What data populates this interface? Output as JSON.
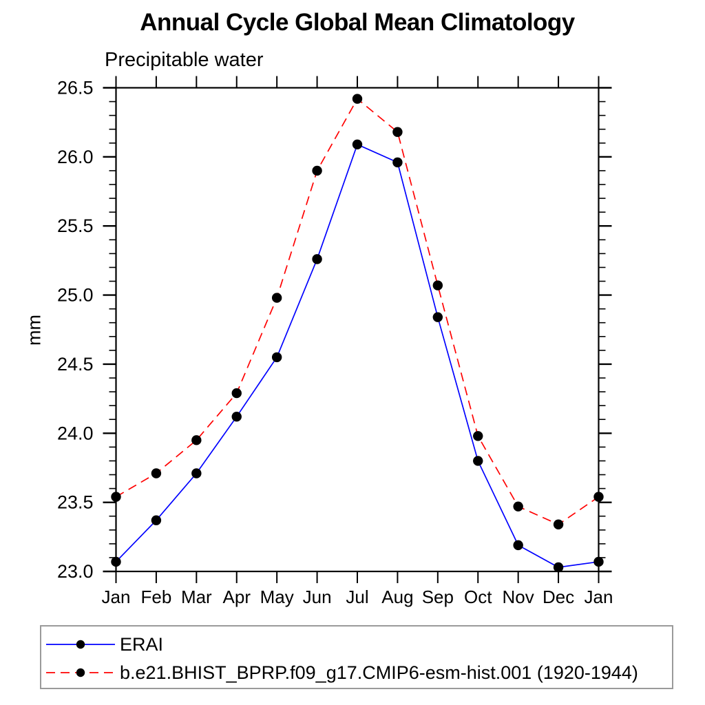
{
  "chart_data": {
    "type": "line",
    "title": "Annual Cycle Global Mean Climatology",
    "subtitle": "Precipitable water",
    "xlabel": "",
    "ylabel": "mm",
    "categories": [
      "Jan",
      "Feb",
      "Mar",
      "Apr",
      "May",
      "Jun",
      "Jul",
      "Aug",
      "Sep",
      "Oct",
      "Nov",
      "Dec",
      "Jan"
    ],
    "ylim": [
      23.0,
      26.5
    ],
    "ytick_major": 0.5,
    "ytick_minor": 0.1,
    "y_tick_labels": [
      "23.0",
      "23.5",
      "24.0",
      "24.5",
      "25.0",
      "25.5",
      "26.0",
      "26.5"
    ],
    "grid": false,
    "legend_position": "bottom",
    "series": [
      {
        "name": "ERAI",
        "color": "#0000ff",
        "line_style": "solid",
        "marker": "circle",
        "marker_color": "#000000",
        "values": [
          23.07,
          23.37,
          23.71,
          24.12,
          24.55,
          25.26,
          26.09,
          25.96,
          24.84,
          23.8,
          23.19,
          23.03,
          23.07
        ]
      },
      {
        "name": "b.e21.BHIST_BPRP.f09_g17.CMIP6-esm-hist.001 (1920-1944)",
        "color": "#ff0000",
        "line_style": "dashed",
        "marker": "circle",
        "marker_color": "#000000",
        "values": [
          23.54,
          23.71,
          23.95,
          24.29,
          24.98,
          25.9,
          26.42,
          26.18,
          25.07,
          23.98,
          23.47,
          23.34,
          23.54
        ]
      }
    ],
    "colors": {
      "background": "#ffffff",
      "axis": "#000000",
      "marker": "#000000",
      "legend_border": "#9a9a9a"
    }
  }
}
